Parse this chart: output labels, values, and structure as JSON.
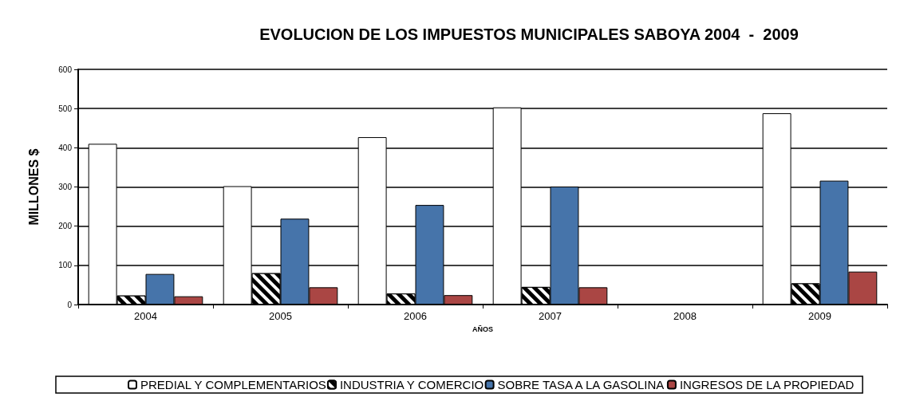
{
  "chart_data": {
    "type": "bar",
    "title": "EVOLUCION DE LOS IMPUESTOS MUNICIPALES SABOYA 2004  -  2009",
    "xlabel": "AÑOS",
    "ylabel": "MILLONES $",
    "categories": [
      "2004",
      "2005",
      "2006",
      "2007",
      "2008",
      "2009"
    ],
    "series": [
      {
        "name": "PREDIAL Y COMPLEMENTARIOS",
        "color": "#ffffff",
        "values": [
          410,
          302,
          427,
          503,
          null,
          488
        ]
      },
      {
        "name": "INDUSTRIA Y COMERCIO",
        "color": "#000000",
        "values": [
          23,
          80,
          28,
          45,
          null,
          54
        ]
      },
      {
        "name": "SOBRE TASA A LA GASOLINA",
        "color": "#4674aa",
        "values": [
          78,
          219,
          254,
          301,
          null,
          316
        ]
      },
      {
        "name": "INGRESOS DE LA PROPIEDAD",
        "color": "#aa4644",
        "values": [
          21,
          44,
          24,
          44,
          null,
          84
        ]
      }
    ],
    "ylim": [
      0,
      600
    ],
    "yticks": [
      0,
      100,
      200,
      300,
      400,
      500,
      600
    ],
    "grid": "y",
    "legend": "bottom"
  }
}
